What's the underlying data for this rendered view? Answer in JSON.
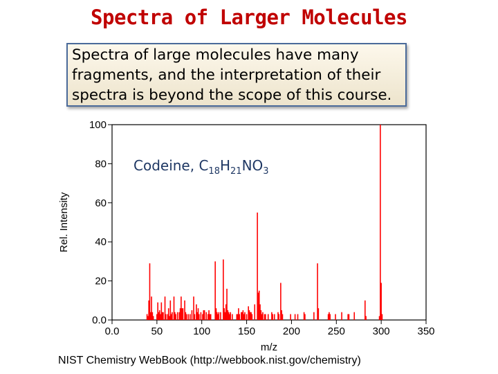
{
  "slide": {
    "title": "Spectra of Larger Molecules",
    "description_lines": [
      "Spectra of large molecules have many",
      "fragments, and the interpretation of their",
      "spectra is beyond the scope of this course."
    ],
    "source": "NIST Chemistry WebBook (http://webbook.nist.gov/chemistry)"
  },
  "colors": {
    "title": "#c00000",
    "peaks": "#ff0000",
    "annotation": "#1f3864",
    "box_border": "#4a6a9a"
  },
  "chart_data": {
    "type": "bar",
    "xlabel": "m/z",
    "ylabel": "Rel. Intensity",
    "xlim": [
      0,
      350
    ],
    "ylim": [
      0,
      100
    ],
    "xticks": [
      0,
      50,
      100,
      150,
      200,
      250,
      300,
      350
    ],
    "yticks": [
      0,
      20,
      40,
      60,
      80,
      100
    ],
    "xtick_labels": [
      "0.0",
      "50",
      "100",
      "150",
      "200",
      "250",
      "300",
      "350"
    ],
    "ytick_labels": [
      "0.0",
      "20",
      "40",
      "60",
      "80",
      "100"
    ],
    "annotation": {
      "parts": [
        [
          "Codeine, C",
          false
        ],
        [
          "18",
          true
        ],
        [
          "H",
          false
        ],
        [
          "21",
          true
        ],
        [
          "NO",
          false
        ],
        [
          "3",
          true
        ]
      ]
    },
    "peaks": [
      {
        "x": 39,
        "y": 3
      },
      {
        "x": 40,
        "y": 2
      },
      {
        "x": 41,
        "y": 10
      },
      {
        "x": 42,
        "y": 29
      },
      {
        "x": 43,
        "y": 4
      },
      {
        "x": 44,
        "y": 12
      },
      {
        "x": 45,
        "y": 4
      },
      {
        "x": 46,
        "y": 2
      },
      {
        "x": 50,
        "y": 3
      },
      {
        "x": 51,
        "y": 9
      },
      {
        "x": 52,
        "y": 4
      },
      {
        "x": 53,
        "y": 5
      },
      {
        "x": 54,
        "y": 3
      },
      {
        "x": 55,
        "y": 9
      },
      {
        "x": 56,
        "y": 4
      },
      {
        "x": 57,
        "y": 4
      },
      {
        "x": 59,
        "y": 12
      },
      {
        "x": 60,
        "y": 3
      },
      {
        "x": 62,
        "y": 3
      },
      {
        "x": 63,
        "y": 6
      },
      {
        "x": 64,
        "y": 2
      },
      {
        "x": 65,
        "y": 10
      },
      {
        "x": 66,
        "y": 3
      },
      {
        "x": 67,
        "y": 4
      },
      {
        "x": 69,
        "y": 12
      },
      {
        "x": 70,
        "y": 4
      },
      {
        "x": 71,
        "y": 3
      },
      {
        "x": 73,
        "y": 4
      },
      {
        "x": 75,
        "y": 4
      },
      {
        "x": 76,
        "y": 6
      },
      {
        "x": 77,
        "y": 12
      },
      {
        "x": 78,
        "y": 6
      },
      {
        "x": 79,
        "y": 6
      },
      {
        "x": 81,
        "y": 10
      },
      {
        "x": 82,
        "y": 4
      },
      {
        "x": 83,
        "y": 3
      },
      {
        "x": 85,
        "y": 3
      },
      {
        "x": 87,
        "y": 3
      },
      {
        "x": 89,
        "y": 5
      },
      {
        "x": 91,
        "y": 12
      },
      {
        "x": 92,
        "y": 3
      },
      {
        "x": 94,
        "y": 8
      },
      {
        "x": 95,
        "y": 4
      },
      {
        "x": 96,
        "y": 6
      },
      {
        "x": 97,
        "y": 3
      },
      {
        "x": 99,
        "y": 4
      },
      {
        "x": 101,
        "y": 3
      },
      {
        "x": 102,
        "y": 5
      },
      {
        "x": 103,
        "y": 5
      },
      {
        "x": 105,
        "y": 4
      },
      {
        "x": 107,
        "y": 3
      },
      {
        "x": 108,
        "y": 5
      },
      {
        "x": 109,
        "y": 3
      },
      {
        "x": 110,
        "y": 3
      },
      {
        "x": 115,
        "y": 30
      },
      {
        "x": 116,
        "y": 6
      },
      {
        "x": 117,
        "y": 4
      },
      {
        "x": 118,
        "y": 3
      },
      {
        "x": 119,
        "y": 4
      },
      {
        "x": 121,
        "y": 4
      },
      {
        "x": 124,
        "y": 31
      },
      {
        "x": 125,
        "y": 6
      },
      {
        "x": 126,
        "y": 4
      },
      {
        "x": 127,
        "y": 8
      },
      {
        "x": 128,
        "y": 16
      },
      {
        "x": 129,
        "y": 5
      },
      {
        "x": 130,
        "y": 4
      },
      {
        "x": 131,
        "y": 3
      },
      {
        "x": 132,
        "y": 4
      },
      {
        "x": 134,
        "y": 3
      },
      {
        "x": 139,
        "y": 3
      },
      {
        "x": 140,
        "y": 3
      },
      {
        "x": 141,
        "y": 6
      },
      {
        "x": 142,
        "y": 3
      },
      {
        "x": 144,
        "y": 4
      },
      {
        "x": 145,
        "y": 4
      },
      {
        "x": 146,
        "y": 5
      },
      {
        "x": 147,
        "y": 3
      },
      {
        "x": 148,
        "y": 4
      },
      {
        "x": 150,
        "y": 3
      },
      {
        "x": 152,
        "y": 7
      },
      {
        "x": 153,
        "y": 5
      },
      {
        "x": 154,
        "y": 4
      },
      {
        "x": 155,
        "y": 4
      },
      {
        "x": 156,
        "y": 3
      },
      {
        "x": 159,
        "y": 8
      },
      {
        "x": 162,
        "y": 55
      },
      {
        "x": 163,
        "y": 14
      },
      {
        "x": 164,
        "y": 15
      },
      {
        "x": 165,
        "y": 8
      },
      {
        "x": 166,
        "y": 5
      },
      {
        "x": 167,
        "y": 3
      },
      {
        "x": 168,
        "y": 4
      },
      {
        "x": 170,
        "y": 3
      },
      {
        "x": 171,
        "y": 3
      },
      {
        "x": 174,
        "y": 3
      },
      {
        "x": 178,
        "y": 4
      },
      {
        "x": 179,
        "y": 3
      },
      {
        "x": 181,
        "y": 3
      },
      {
        "x": 185,
        "y": 4
      },
      {
        "x": 186,
        "y": 3
      },
      {
        "x": 188,
        "y": 19
      },
      {
        "x": 189,
        "y": 5
      },
      {
        "x": 190,
        "y": 3
      },
      {
        "x": 199,
        "y": 3
      },
      {
        "x": 204,
        "y": 3
      },
      {
        "x": 207,
        "y": 3
      },
      {
        "x": 214,
        "y": 4
      },
      {
        "x": 215,
        "y": 3
      },
      {
        "x": 225,
        "y": 4
      },
      {
        "x": 229,
        "y": 29
      },
      {
        "x": 230,
        "y": 6
      },
      {
        "x": 241,
        "y": 3
      },
      {
        "x": 242,
        "y": 4
      },
      {
        "x": 243,
        "y": 3
      },
      {
        "x": 249,
        "y": 3
      },
      {
        "x": 256,
        "y": 4
      },
      {
        "x": 263,
        "y": 3
      },
      {
        "x": 264,
        "y": 3
      },
      {
        "x": 270,
        "y": 4
      },
      {
        "x": 282,
        "y": 10
      },
      {
        "x": 283,
        "y": 2
      },
      {
        "x": 298,
        "y": 2
      },
      {
        "x": 299,
        "y": 100
      },
      {
        "x": 300,
        "y": 19
      },
      {
        "x": 301,
        "y": 3
      }
    ]
  }
}
